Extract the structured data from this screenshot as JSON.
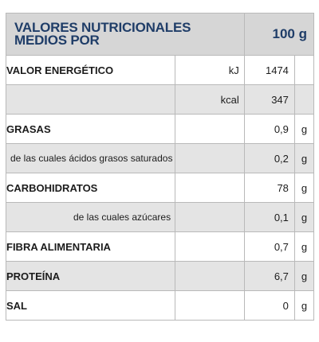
{
  "header": {
    "title": "VALORES NUTRICIONALES MEDIOS POR",
    "per": "100 g"
  },
  "rows": [
    {
      "label": "VALOR ENERGÉTICO",
      "unit": "kJ",
      "value": "1474",
      "unit2": ""
    },
    {
      "label": "",
      "unit": "kcal",
      "value": "347",
      "unit2": ""
    },
    {
      "label": "GRASAS",
      "unit": "",
      "value": "0,9",
      "unit2": "g"
    },
    {
      "label": "de las cuales ácidos grasos saturados",
      "unit": "",
      "value": "0,2",
      "unit2": "g"
    },
    {
      "label": "CARBOHIDRATOS",
      "unit": "",
      "value": "78",
      "unit2": "g"
    },
    {
      "label": "de las cuales azúcares",
      "unit": "",
      "value": "0,1",
      "unit2": "g"
    },
    {
      "label": "FIBRA ALIMENTARIA",
      "unit": "",
      "value": "0,7",
      "unit2": "g"
    },
    {
      "label": "PROTEÍNA",
      "unit": "",
      "value": "6,7",
      "unit2": "g"
    },
    {
      "label": "SAL",
      "unit": "",
      "value": "0",
      "unit2": "g"
    }
  ]
}
